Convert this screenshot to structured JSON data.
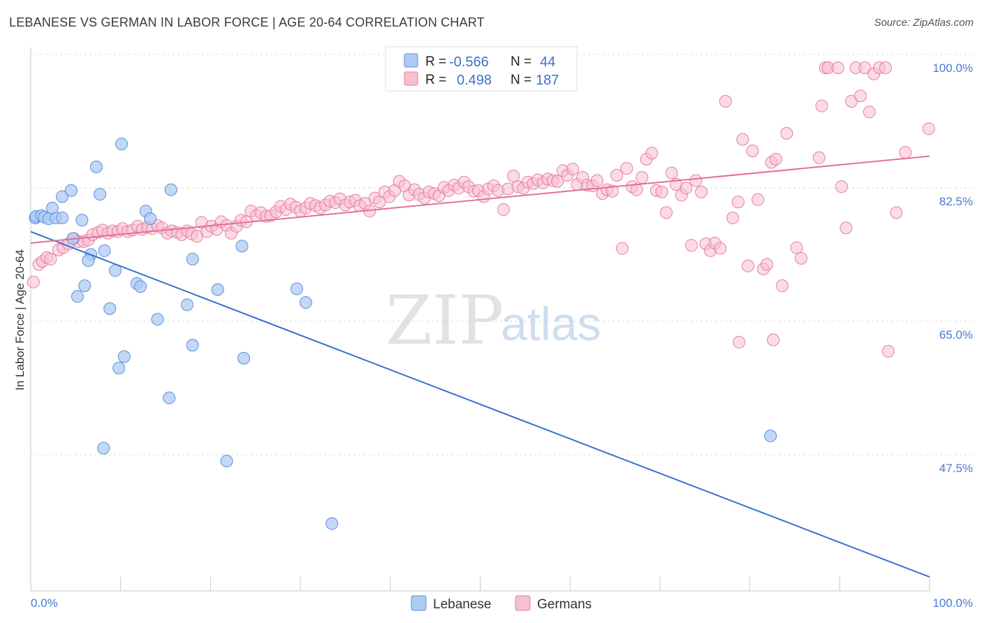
{
  "title": "LEBANESE VS GERMAN IN LABOR FORCE | AGE 20-64 CORRELATION CHART",
  "source": "Source: ZipAtlas.com",
  "watermark": {
    "zip": "ZIP",
    "atlas": "atlas"
  },
  "legend": {
    "r_label": "R =",
    "n_label": "N =",
    "rows": [
      {
        "name": "Lebanese",
        "r": "-0.566",
        "n": "44",
        "fill": "#aecbf2",
        "stroke": "#5b8fd8"
      },
      {
        "name": "Germans",
        "r": "0.498",
        "n": "187",
        "fill": "#f7bfd0",
        "stroke": "#e57f9f"
      }
    ]
  },
  "chart_data": {
    "type": "scatter",
    "title": "LEBANESE VS GERMAN IN LABOR FORCE | AGE 20-64 CORRELATION CHART",
    "xlabel": "",
    "ylabel": "In Labor Force | Age 20-64",
    "xlim": [
      0,
      100
    ],
    "ylim": [
      32,
      102
    ],
    "x_tick_labels": [
      {
        "value": 0,
        "label": "0.0%"
      },
      {
        "value": 100,
        "label": "100.0%"
      }
    ],
    "y_tick_labels": [
      {
        "value": 100,
        "label": "100.0%"
      },
      {
        "value": 82.5,
        "label": "82.5%"
      },
      {
        "value": 65,
        "label": "65.0%"
      },
      {
        "value": 47.5,
        "label": "47.5%"
      }
    ],
    "series": [
      {
        "name": "Lebanese",
        "color": "#5b8fd8",
        "fill": "#aecbf2",
        "trend": {
          "x0": 0,
          "y0": 78.5,
          "x1": 100,
          "y1": 33.2,
          "color": "#3672cc"
        },
        "points": [
          [
            0.5,
            80.3
          ],
          [
            0.6,
            80.5
          ],
          [
            1.2,
            80.6
          ],
          [
            1.5,
            80.4
          ],
          [
            2.0,
            80.2
          ],
          [
            2.8,
            80.3
          ],
          [
            3.5,
            80.3
          ],
          [
            2.4,
            81.6
          ],
          [
            3.5,
            83.1
          ],
          [
            4.5,
            83.9
          ],
          [
            5.7,
            80.0
          ],
          [
            7.3,
            87.0
          ],
          [
            7.7,
            83.4
          ],
          [
            10.1,
            90.0
          ],
          [
            12.8,
            81.2
          ],
          [
            13.3,
            80.2
          ],
          [
            15.6,
            84.0
          ],
          [
            4.7,
            77.6
          ],
          [
            6.7,
            75.5
          ],
          [
            6.4,
            74.7
          ],
          [
            8.2,
            76.0
          ],
          [
            9.4,
            73.4
          ],
          [
            11.8,
            71.7
          ],
          [
            12.2,
            71.3
          ],
          [
            6.0,
            71.4
          ],
          [
            5.2,
            70.0
          ],
          [
            8.8,
            68.4
          ],
          [
            14.1,
            67.0
          ],
          [
            17.4,
            68.9
          ],
          [
            18.0,
            74.9
          ],
          [
            20.8,
            70.9
          ],
          [
            23.5,
            76.6
          ],
          [
            29.6,
            71.0
          ],
          [
            30.6,
            69.2
          ],
          [
            18.0,
            63.6
          ],
          [
            10.4,
            62.1
          ],
          [
            9.8,
            60.6
          ],
          [
            23.7,
            61.9
          ],
          [
            15.4,
            56.7
          ],
          [
            8.1,
            50.1
          ],
          [
            21.8,
            48.4
          ],
          [
            33.5,
            40.2
          ],
          [
            82.3,
            51.7
          ]
        ]
      },
      {
        "name": "Germans",
        "color": "#e57f9f",
        "fill": "#f7bfd0",
        "trend": {
          "x0": 0,
          "y0": 77.0,
          "x1": 100,
          "y1": 88.4,
          "color": "#e0709a"
        },
        "points": [
          [
            0.3,
            71.9
          ],
          [
            0.9,
            74.2
          ],
          [
            1.3,
            74.6
          ],
          [
            1.8,
            75.1
          ],
          [
            2.2,
            74.9
          ],
          [
            3.1,
            76.1
          ],
          [
            3.6,
            76.4
          ],
          [
            4.2,
            76.9
          ],
          [
            4.8,
            77.6
          ],
          [
            5.3,
            77.2
          ],
          [
            5.9,
            77.2
          ],
          [
            6.4,
            77.4
          ],
          [
            6.9,
            78.1
          ],
          [
            7.5,
            78.4
          ],
          [
            8.0,
            78.7
          ],
          [
            8.6,
            78.3
          ],
          [
            9.1,
            78.6
          ],
          [
            9.7,
            78.5
          ],
          [
            10.2,
            78.9
          ],
          [
            10.8,
            78.5
          ],
          [
            11.3,
            78.7
          ],
          [
            11.9,
            79.2
          ],
          [
            12.4,
            78.8
          ],
          [
            13.0,
            79.1
          ],
          [
            13.5,
            78.9
          ],
          [
            14.1,
            79.3
          ],
          [
            14.6,
            79.0
          ],
          [
            15.2,
            78.3
          ],
          [
            15.7,
            78.6
          ],
          [
            16.3,
            78.4
          ],
          [
            16.8,
            78.1
          ],
          [
            17.4,
            78.6
          ],
          [
            17.9,
            78.2
          ],
          [
            18.5,
            77.9
          ],
          [
            19.0,
            79.7
          ],
          [
            19.6,
            78.5
          ],
          [
            20.1,
            79.2
          ],
          [
            20.7,
            78.8
          ],
          [
            21.2,
            79.8
          ],
          [
            21.8,
            79.3
          ],
          [
            22.3,
            78.3
          ],
          [
            22.9,
            79.2
          ],
          [
            23.4,
            80.0
          ],
          [
            24.0,
            79.8
          ],
          [
            24.5,
            81.2
          ],
          [
            25.1,
            80.6
          ],
          [
            25.6,
            81.0
          ],
          [
            26.2,
            80.5
          ],
          [
            26.7,
            80.6
          ],
          [
            27.3,
            81.1
          ],
          [
            27.8,
            81.8
          ],
          [
            28.4,
            81.4
          ],
          [
            28.9,
            82.1
          ],
          [
            29.5,
            81.7
          ],
          [
            30.0,
            81.2
          ],
          [
            30.6,
            81.6
          ],
          [
            31.1,
            82.2
          ],
          [
            31.7,
            81.9
          ],
          [
            32.2,
            81.6
          ],
          [
            32.8,
            82.0
          ],
          [
            33.3,
            82.5
          ],
          [
            33.9,
            82.3
          ],
          [
            34.4,
            82.8
          ],
          [
            35.0,
            82.0
          ],
          [
            35.5,
            82.4
          ],
          [
            36.1,
            82.6
          ],
          [
            36.6,
            81.9
          ],
          [
            37.2,
            82.2
          ],
          [
            37.7,
            81.2
          ],
          [
            38.3,
            82.9
          ],
          [
            38.8,
            82.4
          ],
          [
            39.4,
            83.7
          ],
          [
            39.9,
            83.1
          ],
          [
            40.5,
            83.9
          ],
          [
            41.0,
            85.1
          ],
          [
            41.6,
            84.5
          ],
          [
            42.1,
            83.3
          ],
          [
            42.7,
            84.0
          ],
          [
            43.2,
            83.4
          ],
          [
            43.8,
            82.9
          ],
          [
            44.3,
            83.7
          ],
          [
            44.9,
            83.5
          ],
          [
            45.4,
            83.2
          ],
          [
            46.0,
            84.3
          ],
          [
            46.5,
            83.9
          ],
          [
            47.1,
            84.6
          ],
          [
            47.6,
            84.2
          ],
          [
            48.2,
            85.0
          ],
          [
            48.7,
            84.4
          ],
          [
            49.3,
            83.8
          ],
          [
            49.8,
            83.9
          ],
          [
            50.4,
            83.1
          ],
          [
            50.9,
            84.1
          ],
          [
            51.5,
            84.5
          ],
          [
            52.0,
            83.9
          ],
          [
            52.6,
            81.4
          ],
          [
            53.1,
            84.1
          ],
          [
            53.7,
            85.8
          ],
          [
            54.2,
            84.4
          ],
          [
            54.8,
            84.2
          ],
          [
            55.3,
            85.0
          ],
          [
            55.9,
            84.8
          ],
          [
            56.4,
            85.3
          ],
          [
            57.0,
            84.9
          ],
          [
            57.5,
            85.4
          ],
          [
            58.1,
            85.2
          ],
          [
            58.6,
            85.1
          ],
          [
            59.2,
            86.5
          ],
          [
            59.7,
            85.9
          ],
          [
            60.3,
            86.7
          ],
          [
            60.8,
            84.7
          ],
          [
            61.4,
            85.6
          ],
          [
            61.9,
            84.6
          ],
          [
            62.5,
            84.5
          ],
          [
            63.0,
            85.2
          ],
          [
            63.6,
            83.5
          ],
          [
            64.1,
            84.0
          ],
          [
            64.7,
            83.8
          ],
          [
            65.2,
            85.9
          ],
          [
            65.8,
            76.3
          ],
          [
            66.3,
            86.8
          ],
          [
            66.9,
            84.4
          ],
          [
            67.4,
            84.0
          ],
          [
            68.0,
            85.6
          ],
          [
            68.5,
            88.0
          ],
          [
            69.1,
            88.8
          ],
          [
            69.6,
            83.9
          ],
          [
            70.2,
            83.7
          ],
          [
            70.7,
            81.0
          ],
          [
            71.3,
            86.2
          ],
          [
            71.8,
            84.7
          ],
          [
            72.4,
            83.3
          ],
          [
            72.9,
            84.2
          ],
          [
            73.5,
            76.7
          ],
          [
            74.0,
            85.2
          ],
          [
            74.6,
            83.7
          ],
          [
            75.1,
            76.9
          ],
          [
            75.6,
            76.0
          ],
          [
            76.1,
            77.0
          ],
          [
            76.7,
            76.3
          ],
          [
            77.3,
            95.6
          ],
          [
            78.1,
            80.3
          ],
          [
            78.7,
            82.4
          ],
          [
            79.2,
            90.6
          ],
          [
            79.8,
            74.0
          ],
          [
            80.3,
            89.1
          ],
          [
            80.9,
            82.7
          ],
          [
            81.5,
            73.6
          ],
          [
            81.9,
            74.2
          ],
          [
            82.4,
            87.6
          ],
          [
            82.9,
            88.0
          ],
          [
            83.6,
            71.4
          ],
          [
            84.1,
            91.4
          ],
          [
            85.2,
            76.4
          ],
          [
            85.7,
            75.0
          ],
          [
            87.7,
            88.2
          ],
          [
            88.0,
            95.0
          ],
          [
            88.4,
            100.0
          ],
          [
            88.7,
            100.0
          ],
          [
            89.8,
            100.0
          ],
          [
            90.2,
            84.4
          ],
          [
            90.7,
            79.0
          ],
          [
            91.3,
            95.6
          ],
          [
            91.8,
            100.0
          ],
          [
            92.3,
            96.3
          ],
          [
            92.8,
            100.0
          ],
          [
            93.3,
            94.2
          ],
          [
            93.8,
            99.2
          ],
          [
            94.4,
            100.0
          ],
          [
            95.1,
            100.0
          ],
          [
            97.3,
            88.9
          ],
          [
            99.9,
            92.0
          ],
          [
            96.3,
            81.0
          ],
          [
            95.4,
            62.8
          ],
          [
            78.8,
            64.0
          ],
          [
            82.6,
            64.3
          ]
        ]
      }
    ]
  }
}
